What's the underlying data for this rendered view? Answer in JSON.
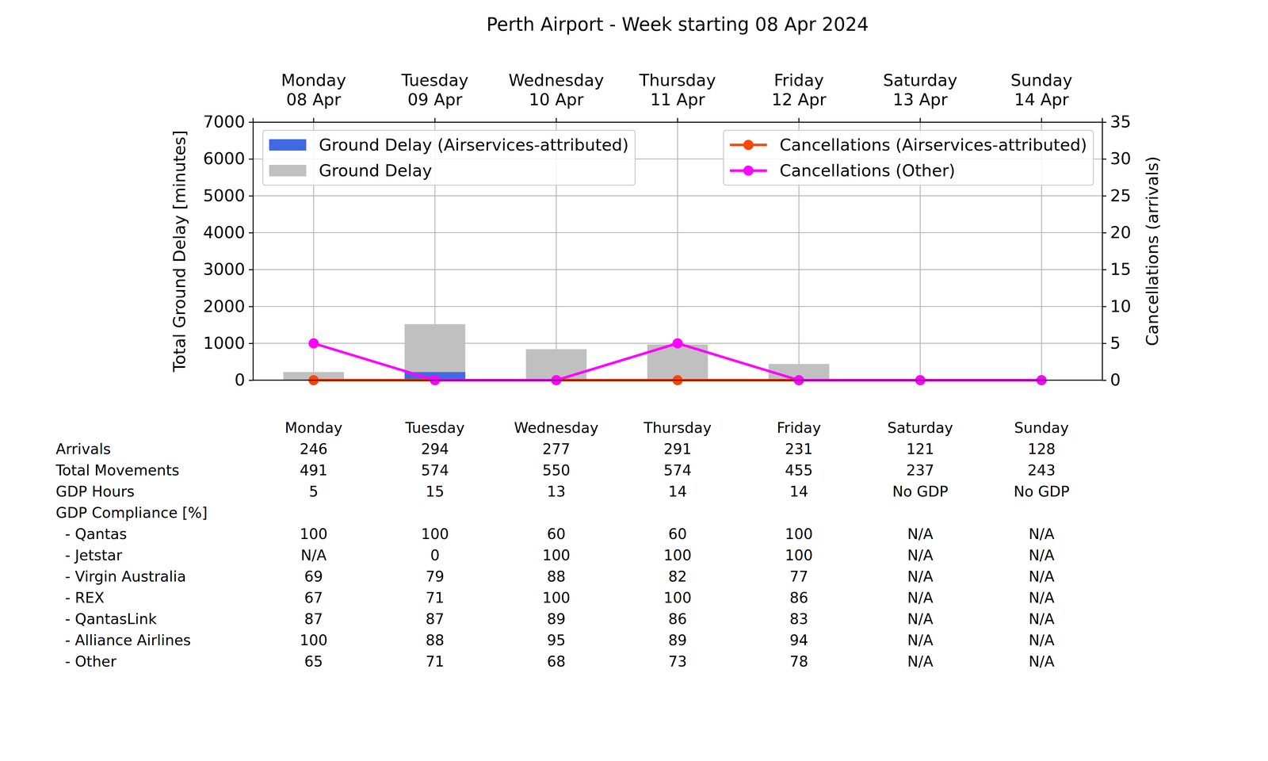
{
  "chart_data": {
    "type": "bar",
    "title": "Perth Airport - Week starting 08 Apr 2024",
    "categories": [
      "Monday\n08 Apr",
      "Tuesday\n09 Apr",
      "Wednesday\n10 Apr",
      "Thursday\n11 Apr",
      "Friday\n12 Apr",
      "Saturday\n13 Apr",
      "Sunday\n14 Apr"
    ],
    "y_label": "Total Ground Delay [minutes]",
    "y2_label": "Cancellations (arrivals)",
    "ylim": [
      0,
      7000
    ],
    "yticks": [
      0,
      1000,
      2000,
      3000,
      4000,
      5000,
      6000,
      7000
    ],
    "y2lim": [
      0,
      35
    ],
    "y2ticks": [
      0,
      5,
      10,
      15,
      20,
      25,
      30,
      35
    ],
    "grid": true,
    "stacked": false,
    "legend": "upper left",
    "series": [
      {
        "name": "Ground Delay (Airservices-attributed)",
        "type": "bar",
        "color": "#4169e1",
        "values": [
          0,
          220,
          0,
          0,
          0,
          0,
          0
        ]
      },
      {
        "name": "Ground Delay",
        "type": "bar",
        "color": "#c0c0c0",
        "values": [
          220,
          1520,
          840,
          970,
          440,
          0,
          0
        ]
      },
      {
        "name": "Cancellations (Airservices-attributed)",
        "type": "line",
        "axis": "y2",
        "marker": "circle",
        "color": "#ff4500",
        "values": [
          0,
          0,
          0,
          0,
          0,
          0,
          0
        ]
      },
      {
        "name": "Cancellations (Other)",
        "type": "line",
        "axis": "y2",
        "marker": "circle",
        "color": "#ff00ff",
        "values": [
          5,
          0,
          0,
          5,
          0,
          0,
          0
        ]
      }
    ]
  },
  "table": {
    "columns": [
      "Monday",
      "Tuesday",
      "Wednesday",
      "Thursday",
      "Friday",
      "Saturday",
      "Sunday"
    ],
    "rows": [
      {
        "label": "Arrivals",
        "values": [
          246,
          294,
          277,
          291,
          231,
          121,
          128
        ]
      },
      {
        "label": "Total Movements",
        "values": [
          491,
          574,
          550,
          574,
          455,
          237,
          243
        ]
      },
      {
        "label": "GDP Hours",
        "values": [
          5,
          15,
          13,
          14,
          14,
          "No GDP",
          "No GDP"
        ]
      },
      {
        "label": "GDP Compliance [%]"
      },
      {
        "label": "  - Qantas",
        "values": [
          100,
          100,
          60,
          60,
          100,
          "N/A",
          "N/A"
        ]
      },
      {
        "label": "  - Jetstar",
        "values": [
          "N/A",
          0,
          100,
          100,
          100,
          "N/A",
          "N/A"
        ]
      },
      {
        "label": "  - Virgin Australia",
        "values": [
          69,
          79,
          88,
          82,
          77,
          "N/A",
          "N/A"
        ]
      },
      {
        "label": "  - REX",
        "values": [
          67,
          71,
          100,
          100,
          86,
          "N/A",
          "N/A"
        ]
      },
      {
        "label": "  - QantasLink",
        "values": [
          87,
          87,
          89,
          86,
          83,
          "N/A",
          "N/A"
        ]
      },
      {
        "label": "  - Alliance Airlines",
        "values": [
          100,
          88,
          95,
          89,
          94,
          "N/A",
          "N/A"
        ]
      },
      {
        "label": "  - Other",
        "values": [
          65,
          71,
          68,
          73,
          78,
          "N/A",
          "N/A"
        ]
      }
    ]
  }
}
